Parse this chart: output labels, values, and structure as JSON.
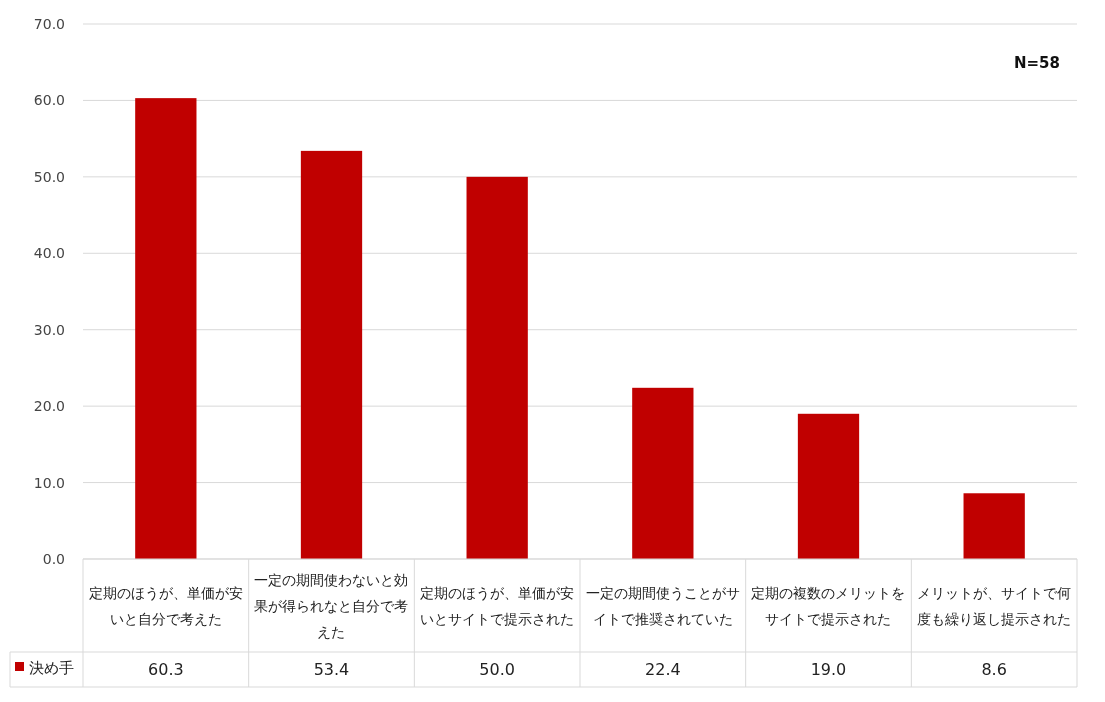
{
  "chart_data": {
    "type": "bar",
    "categories": [
      "定期のほうが、単価が安いと自分で考えた",
      "一定の期間使わないと効果が得られなと自分で考えた",
      "定期のほうが、単価が安いとサイトで提示された",
      "一定の期間使うことがサイトで推奨されていた",
      "定期の複数のメリットをサイトで提示された",
      "メリットが、サイトで何度も繰り返し提示された"
    ],
    "series": [
      {
        "name": "決め手",
        "color": "#c00000",
        "values": [
          60.3,
          53.4,
          50.0,
          22.4,
          19.0,
          8.6
        ],
        "value_labels": [
          "60.3",
          "53.4",
          "50.0",
          "22.4",
          "19.0",
          "8.6"
        ]
      }
    ],
    "ylim": [
      0,
      70
    ],
    "yticks": [
      {
        "value": 0,
        "label": "0.0"
      },
      {
        "value": 10,
        "label": "10.0"
      },
      {
        "value": 20,
        "label": "20.0"
      },
      {
        "value": 30,
        "label": "30.0"
      },
      {
        "value": 40,
        "label": "40.0"
      },
      {
        "value": 50,
        "label": "50.0"
      },
      {
        "value": 60,
        "label": "60.0"
      },
      {
        "value": 70,
        "label": "70.0"
      }
    ],
    "grid": "y",
    "legend": "bottom",
    "annotations": [
      "N=58"
    ]
  }
}
